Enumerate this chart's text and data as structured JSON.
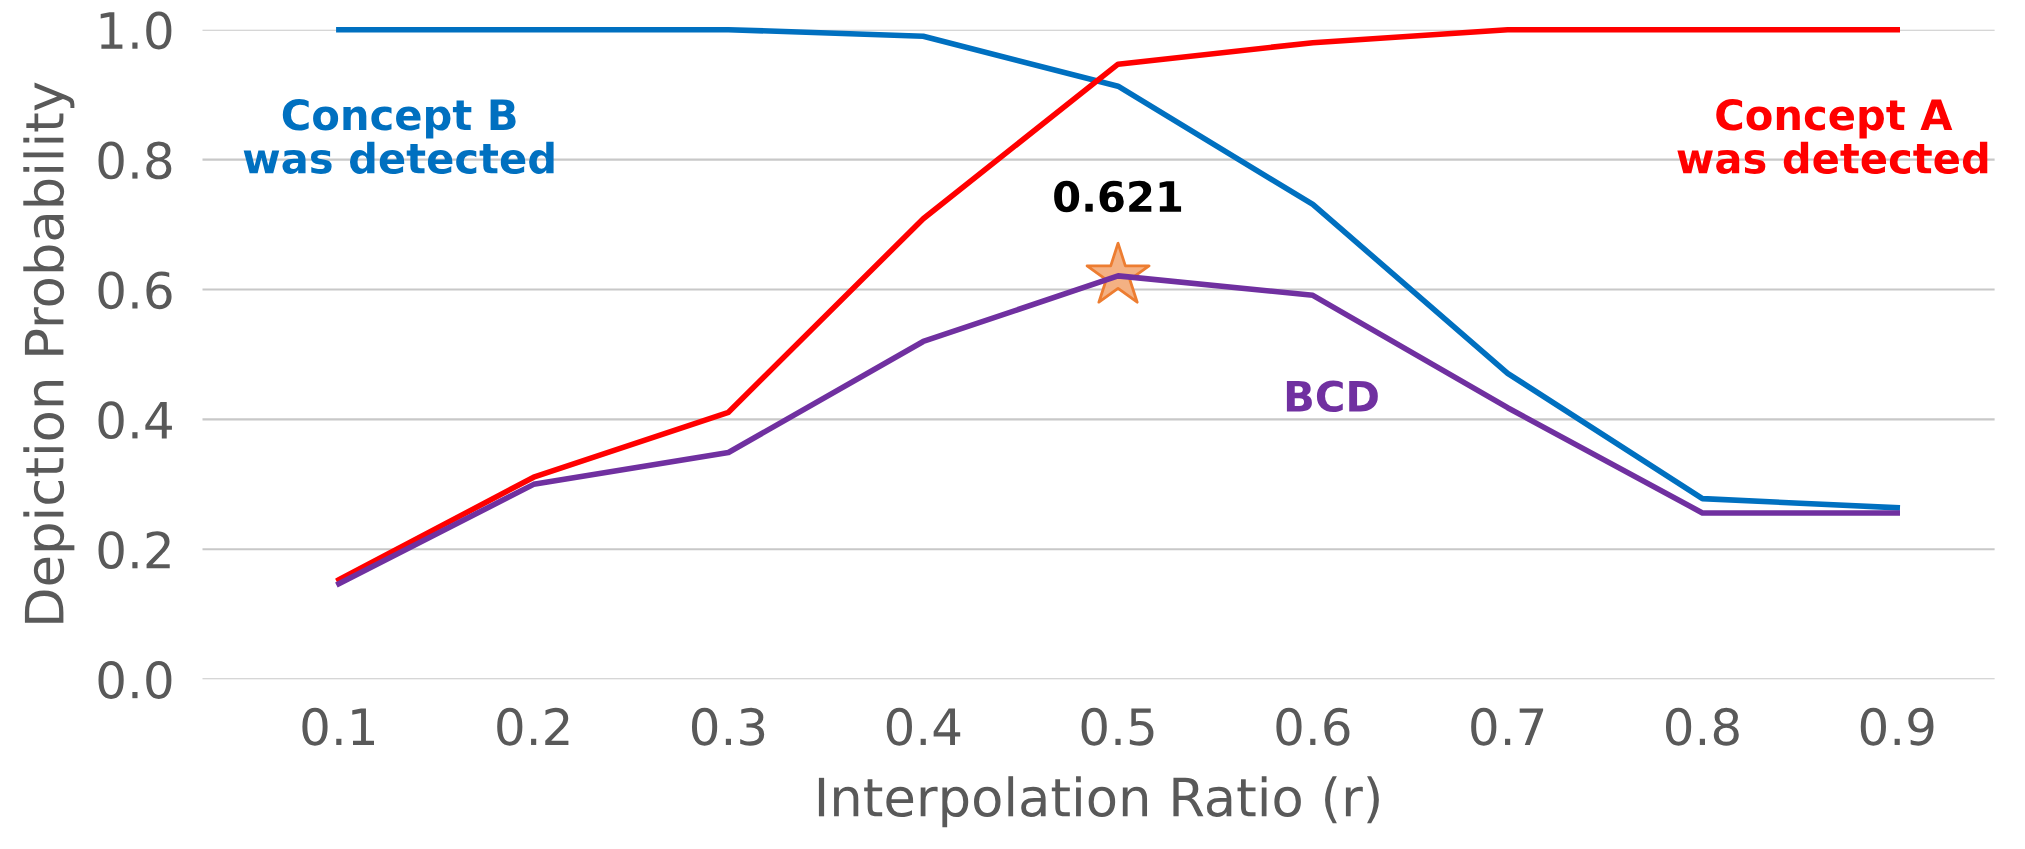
{
  "chart_data": {
    "type": "line",
    "xlabel": "Interpolation Ratio (r)",
    "ylabel": "Depiction Probability",
    "categories": [
      "0.1",
      "0.2",
      "0.3",
      "0.4",
      "0.5",
      "0.6",
      "0.7",
      "0.8",
      "0.9"
    ],
    "series": [
      {
        "name": "Concept B\nwas detected",
        "color": "#0070c0",
        "values": [
          1.0,
          1.0,
          1.0,
          0.99,
          0.913,
          0.731,
          0.471,
          0.278,
          0.264
        ]
      },
      {
        "name": "Concept A\nwas detected",
        "color": "#ff0000",
        "values": [
          0.153,
          0.311,
          0.411,
          0.709,
          0.947,
          0.98,
          1.0,
          1.0,
          1.0
        ]
      },
      {
        "name": "BCD",
        "color": "#7030a0",
        "values": [
          0.147,
          0.3,
          0.349,
          0.52,
          0.621,
          0.591,
          0.418,
          0.256,
          0.256
        ]
      },
      {
        "type": "scatter",
        "marker": "star",
        "color": "#f4b183",
        "x": [
          "0.5"
        ],
        "values": [
          0.621
        ]
      }
    ],
    "annotations": [
      {
        "text": "0.621",
        "x": "0.5",
        "y": 0.621
      }
    ],
    "ylim": [
      0,
      1.0
    ],
    "yticks": [
      {
        "value": 0,
        "label": "0.0"
      },
      0.2,
      0.4,
      0.6,
      0.8,
      {
        "value": 1.0,
        "label": "1.0"
      }
    ],
    "grid": "y",
    "legend": false,
    "line_style": "solid",
    "marker": "none"
  }
}
